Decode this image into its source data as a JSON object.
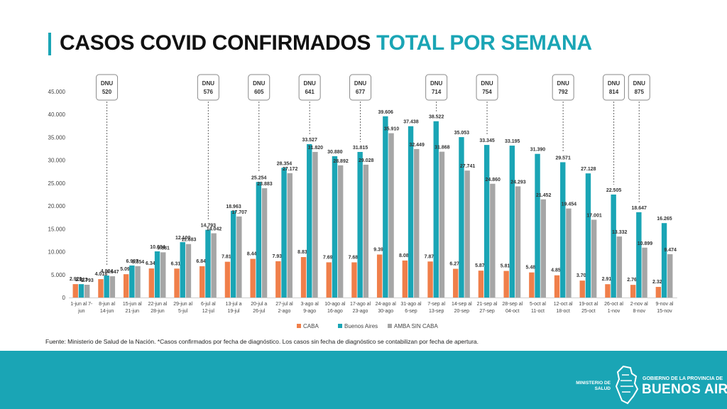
{
  "title": {
    "part1": "CASOS COVID CONFIRMADOS",
    "part2": "TOTAL POR SEMANA"
  },
  "colors": {
    "caba": "#f07f4a",
    "buenos_aires": "#1aa5b5",
    "amba_sin_caba": "#a6a6a6",
    "accent": "#1aa5b5"
  },
  "chart_data": {
    "type": "bar",
    "ylim": [
      0,
      45000
    ],
    "yticks": [
      "0",
      "5.000",
      "10.000",
      "15.000",
      "20.000",
      "25.000",
      "30.000",
      "35.000",
      "40.000",
      "45.000"
    ],
    "categories": [
      [
        "1-jun al 7-",
        "jun"
      ],
      [
        "8-jun al",
        "14-jun"
      ],
      [
        "15-jun al",
        "21-jun"
      ],
      [
        "22-jun al",
        "28-jun"
      ],
      [
        "29-jun al",
        "5-jul"
      ],
      [
        "6-jul al",
        "12-jul"
      ],
      [
        "13-jul a",
        "19-jul"
      ],
      [
        "20-jul a",
        "26-jul"
      ],
      [
        "27-jul al",
        "2-ago"
      ],
      [
        "3-ago al",
        "9-ago"
      ],
      [
        "10-ago al",
        "16-ago"
      ],
      [
        "17-ago al",
        "23-ago"
      ],
      [
        "24-ago al",
        "30-ago"
      ],
      [
        "31-ago al",
        "6-sep"
      ],
      [
        "7-sep al",
        "13-sep"
      ],
      [
        "14-sep al",
        "20-sep"
      ],
      [
        "21-sep al",
        "27-sep"
      ],
      [
        "28-sep al",
        "04-oct"
      ],
      [
        "5-oct al",
        "11-oct"
      ],
      [
        "12-oct al",
        "18-oct"
      ],
      [
        "19-oct al",
        "25-oct"
      ],
      [
        "26-oct al",
        "1-nov"
      ],
      [
        "2-nov al",
        "8-nov"
      ],
      [
        "9-nov al",
        "15-nov"
      ]
    ],
    "series": [
      {
        "name": "CABA",
        "color": "#f07f4a",
        "values": [
          2929,
          4018,
          5095,
          6347,
          6318,
          6844,
          7817,
          8447,
          7931,
          8837,
          7691,
          7687,
          9394,
          8089,
          7872,
          6272,
          5874,
          5810,
          5483,
          4853,
          3700,
          2913,
          2765,
          2321
        ],
        "labels": [
          "2.929",
          "4.018",
          "5.095",
          "6.347",
          "6.318",
          "6.844",
          "7.817",
          "8.447",
          "7.931",
          "8.837",
          "7.691",
          "7.687",
          "9.394",
          "8.089",
          "7.872",
          "6.272",
          "5.874",
          "5.810",
          "5.483",
          "4.853",
          "3.700",
          "2.913",
          "2.765",
          "2.321"
        ]
      },
      {
        "name": "Buenos Aires",
        "color": "#1aa5b5",
        "values": [
          2923,
          4804,
          6997,
          10084,
          12100,
          14793,
          18963,
          25254,
          28354,
          33527,
          30880,
          31815,
          39606,
          37438,
          38522,
          35053,
          33345,
          33195,
          31390,
          29571,
          27128,
          22505,
          18647,
          16265
        ],
        "labels": [
          "2.923",
          "4.804",
          "6.997",
          "10.084",
          "12.100",
          "14.793",
          "18.963",
          "25.254",
          "28.354",
          "33.527",
          "30.880",
          "31.815",
          "39.606",
          "37.438",
          "38.522",
          "35.053",
          "33.345",
          "33.195",
          "31.390",
          "29.571",
          "27.128",
          "22.505",
          "18.647",
          "16.265"
        ]
      },
      {
        "name": "AMBA SIN CABA",
        "color": "#a6a6a6",
        "values": [
          2793,
          4647,
          6854,
          9881,
          11683,
          14042,
          17707,
          23883,
          27172,
          31820,
          28892,
          29028,
          35910,
          32449,
          31868,
          27741,
          24860,
          24293,
          21452,
          19454,
          17001,
          13332,
          10899,
          9474
        ],
        "labels": [
          "2.793",
          "4.647",
          "6.854",
          "9.881",
          "11.683",
          "14.042",
          "17.707",
          "23.883",
          "27.172",
          "31.820",
          "28.892",
          "29.028",
          "35.910",
          "32.449",
          "31.868",
          "27.741",
          "24.860",
          "24.293",
          "21.452",
          "19.454",
          "17.001",
          "13.332",
          "10.899",
          "9.474"
        ]
      }
    ],
    "annotations": [
      {
        "line1": "DNU",
        "line2": "520",
        "category_index": 1
      },
      {
        "line1": "DNU",
        "line2": "576",
        "category_index": 5
      },
      {
        "line1": "DNU",
        "line2": "605",
        "category_index": 7
      },
      {
        "line1": "DNU",
        "line2": "641",
        "category_index": 9
      },
      {
        "line1": "DNU",
        "line2": "677",
        "category_index": 11
      },
      {
        "line1": "DNU",
        "line2": "714",
        "category_index": 14
      },
      {
        "line1": "DNU",
        "line2": "754",
        "category_index": 16
      },
      {
        "line1": "DNU",
        "line2": "792",
        "category_index": 19
      },
      {
        "line1": "DNU",
        "line2": "814",
        "category_index": 21
      },
      {
        "line1": "DNU",
        "line2": "875",
        "category_index": 22
      }
    ],
    "legend_position": "bottom"
  },
  "footnote": "Fuente: Ministerio de Salud de la Nación. *Casos confirmados por fecha de diagnóstico. Los casos sin fecha de diagnóstico se contabilizan por fecha de apertura.",
  "footer": {
    "ministerio_line1": "MINISTERIO DE",
    "ministerio_line2": "SALUD",
    "gobierno": "GOBIERNO DE LA PROVINCIA DE",
    "provincia": "BUENOS AIRES"
  }
}
